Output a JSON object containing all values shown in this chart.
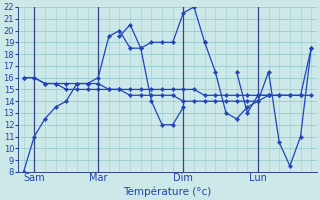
{
  "xlabel": "Température (°c)",
  "background_color": "#cce8e8",
  "grid_color": "#99cccc",
  "line_color": "#2244bb",
  "ylim": [
    8,
    22
  ],
  "yticks": [
    8,
    9,
    10,
    11,
    12,
    13,
    14,
    15,
    16,
    17,
    18,
    19,
    20,
    21,
    22
  ],
  "day_labels": [
    "Sam",
    "Mar",
    "Dim",
    "Lun"
  ],
  "day_positions": [
    1,
    7,
    15,
    22
  ],
  "total_points": 28,
  "s1": [
    8.0,
    11.0,
    12.5,
    13.5,
    14.0,
    15.5,
    15.5,
    16.0,
    19.5,
    20.0,
    18.5,
    18.5,
    19.0,
    19.0,
    19.0,
    21.5,
    22.0,
    19.0,
    16.5,
    13.0,
    12.5,
    13.5,
    14.0,
    16.5,
    10.5,
    8.5,
    11.0,
    18.5
  ],
  "s2": [
    null,
    null,
    null,
    null,
    null,
    null,
    null,
    null,
    null,
    19.5,
    20.5,
    18.5,
    14.0,
    12.0,
    12.0,
    13.5,
    null,
    19.0,
    null,
    null,
    16.5,
    13.0,
    14.5,
    14.5,
    null,
    null,
    null,
    null
  ],
  "s3": [
    16.0,
    16.0,
    15.5,
    15.5,
    15.0,
    15.0,
    15.0,
    15.0,
    15.0,
    15.0,
    14.5,
    14.5,
    14.5,
    14.5,
    14.5,
    14.0,
    14.0,
    14.0,
    14.0,
    14.0,
    14.0,
    14.0,
    14.0,
    14.5,
    14.5,
    14.5,
    14.5,
    14.5
  ],
  "s4": [
    16.0,
    16.0,
    15.5,
    15.5,
    15.5,
    15.5,
    15.5,
    15.5,
    15.0,
    15.0,
    15.0,
    15.0,
    15.0,
    15.0,
    15.0,
    15.0,
    15.0,
    14.5,
    14.5,
    14.5,
    14.5,
    14.5,
    14.5,
    14.5,
    14.5,
    14.5,
    14.5,
    18.5
  ]
}
